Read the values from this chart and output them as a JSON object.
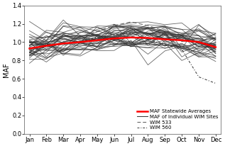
{
  "months": [
    "Jan",
    "Feb",
    "Mar",
    "Apr",
    "May",
    "Jun",
    "Jul",
    "Aug",
    "Sep",
    "Oct",
    "Nov",
    "Dec"
  ],
  "statewide_avg": [
    0.93,
    0.96,
    0.985,
    1.0,
    1.02,
    1.04,
    1.05,
    1.045,
    1.03,
    1.02,
    1.0,
    0.945
  ],
  "ylim": [
    0.0,
    1.4
  ],
  "yticks": [
    0.0,
    0.2,
    0.4,
    0.6,
    0.8,
    1.0,
    1.2,
    1.4
  ],
  "avg_color": "#FF0000",
  "individual_color": "#333333",
  "wim533_color": "#555555",
  "wim560_color": "#333333",
  "avg_linewidth": 1.8,
  "individual_linewidth": 0.6,
  "background_color": "#ffffff",
  "legend_fontsize": 5.0,
  "axis_label_fontsize": 7,
  "tick_fontsize": 6.0
}
